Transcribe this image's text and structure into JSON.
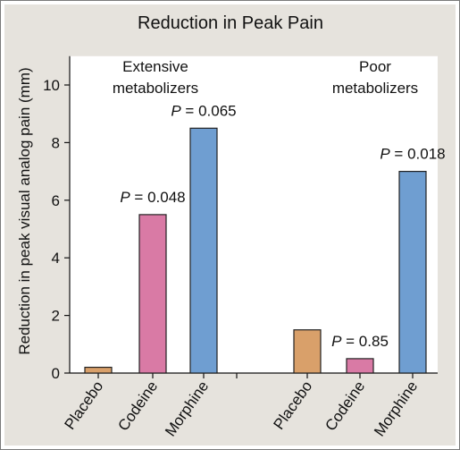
{
  "chart_data": {
    "type": "bar",
    "title": "Reduction in Peak Pain",
    "ylabel": "Reduction in peak visual analog pain (mm)",
    "xlabel": "",
    "ylim": [
      0,
      11
    ],
    "yticks": [
      0,
      2,
      4,
      6,
      8,
      10
    ],
    "groups": [
      {
        "label_lines": [
          "Extensive",
          "metabolizers"
        ],
        "bars": [
          {
            "category": "Placebo",
            "value": 0.2,
            "pvalue": "",
            "color": "#d9a06a"
          },
          {
            "category": "Codeine",
            "value": 5.5,
            "pvalue": "0.048",
            "color": "#d97aa5"
          },
          {
            "category": "Morphine",
            "value": 8.5,
            "pvalue": "0.065",
            "color": "#6f9ed1"
          }
        ]
      },
      {
        "label_lines": [
          "Poor",
          "metabolizers"
        ],
        "bars": [
          {
            "category": "Placebo",
            "value": 1.5,
            "pvalue": "",
            "color": "#d9a06a"
          },
          {
            "category": "Codeine",
            "value": 0.5,
            "pvalue": "0.85",
            "color": "#d97aa5"
          },
          {
            "category": "Morphine",
            "value": 7.0,
            "pvalue": "0.018",
            "color": "#6f9ed1"
          }
        ]
      }
    ],
    "pvalue_prefix": "P",
    "pvalue_eq": " = ",
    "grid": false
  }
}
